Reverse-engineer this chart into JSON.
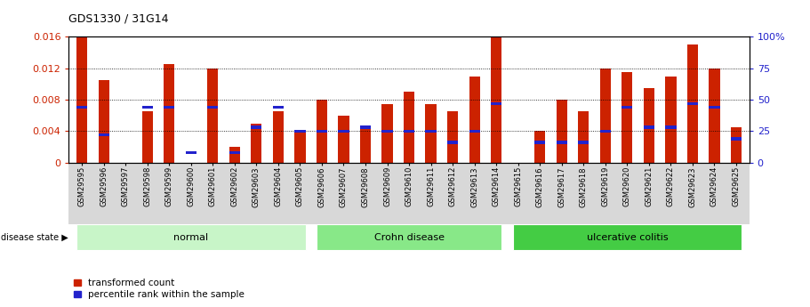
{
  "title": "GDS1330 / 31G14",
  "categories": [
    "GSM29595",
    "GSM29596",
    "GSM29597",
    "GSM29598",
    "GSM29599",
    "GSM29600",
    "GSM29601",
    "GSM29602",
    "GSM29603",
    "GSM29604",
    "GSM29605",
    "GSM29606",
    "GSM29607",
    "GSM29608",
    "GSM29609",
    "GSM29610",
    "GSM29611",
    "GSM29612",
    "GSM29613",
    "GSM29614",
    "GSM29615",
    "GSM29616",
    "GSM29617",
    "GSM29618",
    "GSM29619",
    "GSM29620",
    "GSM29621",
    "GSM29622",
    "GSM29623",
    "GSM29624",
    "GSM29625"
  ],
  "transformed_count": [
    0.016,
    0.0105,
    0.0,
    0.0065,
    0.0125,
    0.0,
    0.012,
    0.002,
    0.005,
    0.0065,
    0.004,
    0.008,
    0.006,
    0.0045,
    0.0075,
    0.009,
    0.0075,
    0.0065,
    0.011,
    0.016,
    0.0,
    0.004,
    0.008,
    0.0065,
    0.012,
    0.0115,
    0.0095,
    0.011,
    0.015,
    0.012,
    0.0045
  ],
  "percentile_rank": [
    44,
    22,
    0,
    44,
    44,
    8,
    44,
    8,
    28,
    44,
    25,
    25,
    25,
    28,
    25,
    25,
    25,
    16,
    25,
    47,
    0,
    16,
    16,
    16,
    25,
    44,
    28,
    28,
    47,
    44,
    19
  ],
  "groups": [
    {
      "label": "normal",
      "start": 0,
      "end": 10,
      "color": "#c8f5c8"
    },
    {
      "label": "Crohn disease",
      "start": 11,
      "end": 19,
      "color": "#88e888"
    },
    {
      "label": "ulcerative colitis",
      "start": 20,
      "end": 30,
      "color": "#44cc44"
    }
  ],
  "bar_color": "#cc2200",
  "marker_color": "#2222cc",
  "ylim_left": [
    0,
    0.016
  ],
  "ylim_right": [
    0,
    100
  ],
  "yticks_left": [
    0,
    0.004,
    0.008,
    0.012,
    0.016
  ],
  "ytick_labels_left": [
    "0",
    "0.004",
    "0.008",
    "0.012",
    "0.016"
  ],
  "yticks_right": [
    0,
    25,
    50,
    75,
    100
  ],
  "ytick_labels_right": [
    "0",
    "25",
    "50",
    "75",
    "100%"
  ],
  "background_color": "#ffffff",
  "title_color": "#000000",
  "title_fontsize": 9,
  "tick_label_fontsize": 6,
  "left_axis_color": "#cc2200",
  "right_axis_color": "#2222cc"
}
